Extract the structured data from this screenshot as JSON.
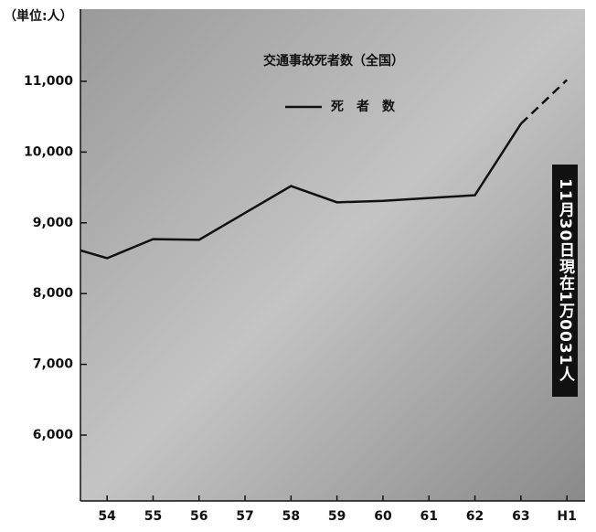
{
  "chart_data": {
    "type": "line",
    "title": "交通事故死者数（全国）",
    "unit_label": "（単位:人）",
    "annotation": "11月30日現在1万0031人",
    "categories": [
      null,
      "54",
      "55",
      "56",
      "57",
      "58",
      "59",
      "60",
      "61",
      "62",
      "63",
      "H1"
    ],
    "series": [
      {
        "name": "死　者　数",
        "color": "#111111",
        "values": [
          8690,
          8500,
          8770,
          8760,
          9140,
          9520,
          9290,
          9310,
          9350,
          9390,
          10400,
          11020
        ],
        "dashed_from": 10
      }
    ],
    "ylim": [
      5070,
      12020
    ],
    "yticks": [
      {
        "value": 6000,
        "label": "6,000"
      },
      {
        "value": 7000,
        "label": "7,000"
      },
      {
        "value": 8000,
        "label": "8,000"
      },
      {
        "value": 9000,
        "label": "9,000"
      },
      {
        "value": 10000,
        "label": "10,000"
      },
      {
        "value": 11000,
        "label": "11,000"
      }
    ]
  }
}
